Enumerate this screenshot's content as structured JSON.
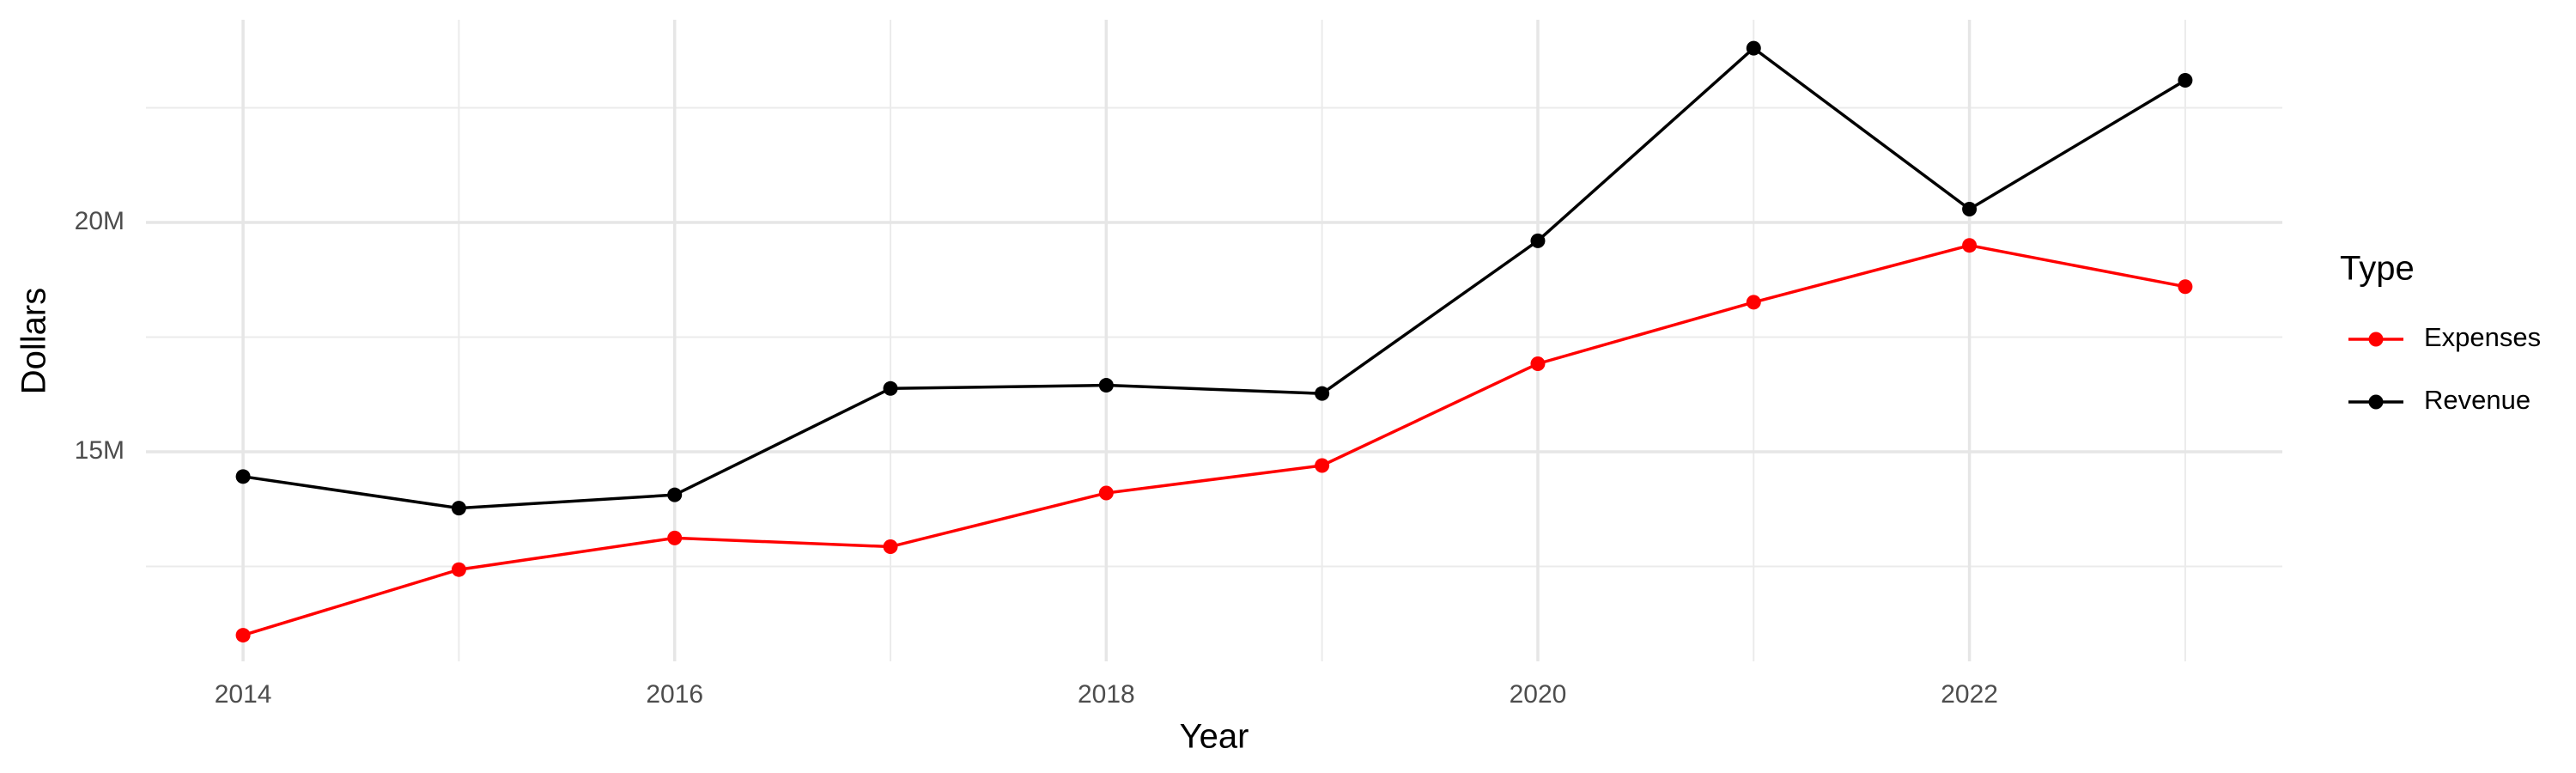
{
  "chart_data": {
    "type": "line",
    "x_label": "Year",
    "y_label": "Dollars",
    "legend_title": "Type",
    "legend_position": "right",
    "grid": true,
    "x": [
      2014,
      2015,
      2016,
      2017,
      2018,
      2019,
      2020,
      2021,
      2022,
      2023
    ],
    "xlim": [
      2013.55,
      2023.45
    ],
    "xticks": [
      2014,
      2016,
      2018,
      2020,
      2022
    ],
    "minor_xticks": [
      2015,
      2017,
      2019,
      2021,
      2023
    ],
    "ylim": [
      10430000,
      24420000
    ],
    "yticks": [
      {
        "value": 15000000,
        "label": "15M"
      },
      {
        "value": 20000000,
        "label": "20M"
      }
    ],
    "minor_yticks": [
      12500000,
      17500000,
      22500000
    ],
    "series": [
      {
        "name": "Expenses",
        "color": "#ff0000",
        "values": [
          11000000,
          12430000,
          13120000,
          12930000,
          14100000,
          14700000,
          16920000,
          18260000,
          19500000,
          18600000
        ]
      },
      {
        "name": "Revenue",
        "color": "#000000",
        "values": [
          14460000,
          13770000,
          14060000,
          16380000,
          16450000,
          16270000,
          19600000,
          23800000,
          20290000,
          23100000
        ]
      }
    ]
  }
}
